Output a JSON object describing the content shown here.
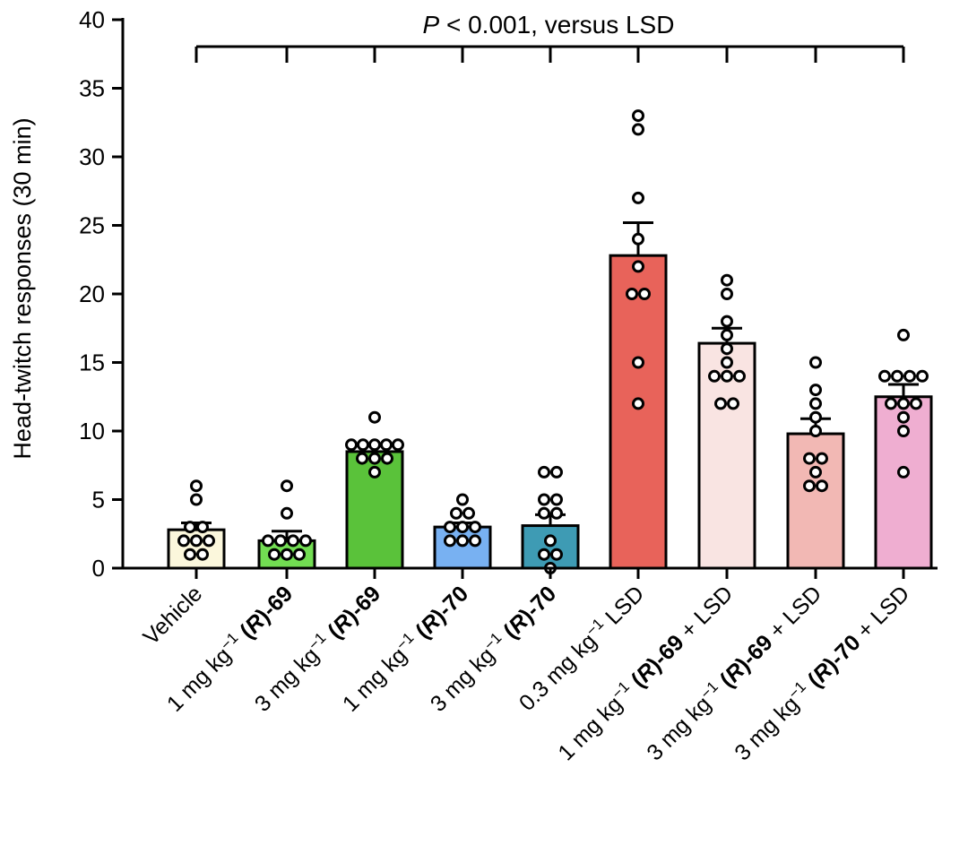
{
  "chart_data": {
    "type": "bar",
    "title": "",
    "ylabel": "Head-twitch responses (30 min)",
    "xlabel": "",
    "ylim": [
      0,
      40
    ],
    "yticks": [
      0,
      5,
      10,
      15,
      20,
      25,
      30,
      35,
      40
    ],
    "grid": false,
    "annotation": {
      "italic": "P",
      "text": " < 0.001, versus LSD"
    },
    "categories": [
      {
        "parts": [
          {
            "t": "Vehicle",
            "b": false
          }
        ]
      },
      {
        "parts": [
          {
            "t": "1 mg kg",
            "b": false
          },
          {
            "t": "−1",
            "b": false,
            "sup": true
          },
          {
            "t": " ",
            "b": false
          },
          {
            "t": "(",
            "b": true
          },
          {
            "t": "R",
            "b": true,
            "i": true
          },
          {
            "t": ")-69",
            "b": true
          }
        ]
      },
      {
        "parts": [
          {
            "t": "3 mg kg",
            "b": false
          },
          {
            "t": "−1",
            "b": false,
            "sup": true
          },
          {
            "t": " ",
            "b": false
          },
          {
            "t": "(",
            "b": true
          },
          {
            "t": "R",
            "b": true,
            "i": true
          },
          {
            "t": ")-69",
            "b": true
          }
        ]
      },
      {
        "parts": [
          {
            "t": "1 mg kg",
            "b": false
          },
          {
            "t": "−1",
            "b": false,
            "sup": true
          },
          {
            "t": " ",
            "b": false
          },
          {
            "t": "(",
            "b": true
          },
          {
            "t": "R",
            "b": true,
            "i": true
          },
          {
            "t": ")-70",
            "b": true
          }
        ]
      },
      {
        "parts": [
          {
            "t": "3 mg kg",
            "b": false
          },
          {
            "t": "−1",
            "b": false,
            "sup": true
          },
          {
            "t": " ",
            "b": false
          },
          {
            "t": "(",
            "b": true
          },
          {
            "t": "R",
            "b": true,
            "i": true
          },
          {
            "t": ")-70",
            "b": true
          }
        ]
      },
      {
        "parts": [
          {
            "t": "0.3 mg kg",
            "b": false
          },
          {
            "t": "−1",
            "b": false,
            "sup": true
          },
          {
            "t": " LSD",
            "b": false
          }
        ]
      },
      {
        "parts": [
          {
            "t": "1 mg kg",
            "b": false
          },
          {
            "t": "−1",
            "b": false,
            "sup": true
          },
          {
            "t": " ",
            "b": false
          },
          {
            "t": "(",
            "b": true
          },
          {
            "t": "R",
            "b": true,
            "i": true
          },
          {
            "t": ")-69",
            "b": true
          },
          {
            "t": " + LSD",
            "b": false
          }
        ]
      },
      {
        "parts": [
          {
            "t": "3 mg kg",
            "b": false
          },
          {
            "t": "−1",
            "b": false,
            "sup": true
          },
          {
            "t": " ",
            "b": false
          },
          {
            "t": "(",
            "b": true
          },
          {
            "t": "R",
            "b": true,
            "i": true
          },
          {
            "t": ")-69",
            "b": true
          },
          {
            "t": " + LSD",
            "b": false
          }
        ]
      },
      {
        "parts": [
          {
            "t": "3 mg kg",
            "b": false
          },
          {
            "t": "−1",
            "b": false,
            "sup": true
          },
          {
            "t": " ",
            "b": false
          },
          {
            "t": "(",
            "b": true
          },
          {
            "t": "R",
            "b": true,
            "i": true
          },
          {
            "t": ")-70",
            "b": true
          },
          {
            "t": " + LSD",
            "b": false
          }
        ]
      }
    ],
    "values": [
      2.8,
      2.0,
      8.5,
      3.0,
      3.1,
      22.8,
      16.4,
      9.8,
      12.5
    ],
    "sem": [
      0.5,
      0.7,
      0.4,
      0.3,
      0.8,
      2.4,
      1.1,
      1.1,
      0.9
    ],
    "colors": [
      "#fbf7dc",
      "#72dd52",
      "#5ac23a",
      "#78b1f2",
      "#3e9bb4",
      "#e8635a",
      "#f9e4e2",
      "#f2b8b4",
      "#efaed1"
    ],
    "points": [
      [
        6,
        5,
        3,
        3,
        2,
        2,
        2,
        1,
        1
      ],
      [
        6,
        4,
        2,
        2,
        2,
        2,
        1,
        1,
        1
      ],
      [
        11,
        9,
        9,
        9,
        9,
        9,
        8,
        8,
        8,
        7
      ],
      [
        5,
        4,
        4,
        3,
        3,
        3,
        2,
        2,
        2
      ],
      [
        7,
        7,
        5,
        5,
        4,
        4,
        2,
        1,
        1,
        0
      ],
      [
        33,
        32,
        27,
        24,
        22,
        20,
        20,
        15,
        12
      ],
      [
        21,
        20,
        18,
        17,
        16,
        15,
        14,
        14,
        14,
        12,
        12
      ],
      [
        15,
        13,
        12,
        11,
        10,
        8,
        8,
        7,
        6,
        6
      ],
      [
        17,
        14,
        14,
        14,
        14,
        12,
        12,
        12,
        11,
        10,
        7
      ]
    ]
  }
}
